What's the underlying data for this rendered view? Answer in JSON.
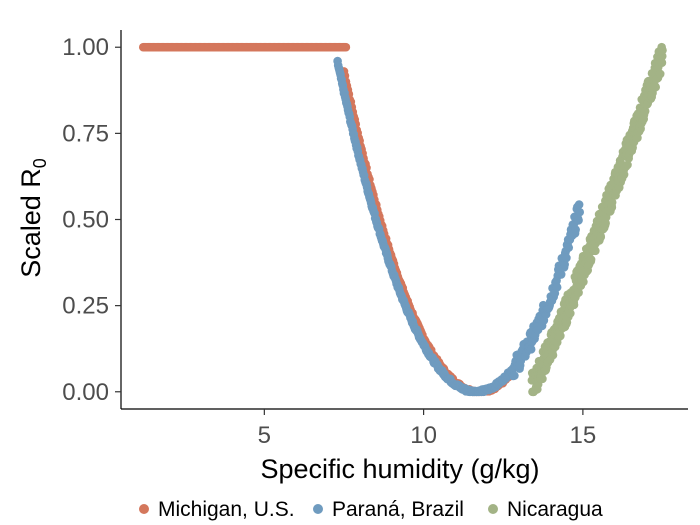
{
  "chart_data": {
    "type": "scatter",
    "xlabel": "Specific humidity (g/kg)",
    "ylabel_main": "Scaled  R",
    "ylabel_sub": "0",
    "xlim": [
      0.5,
      18.3
    ],
    "ylim": [
      -0.05,
      1.05
    ],
    "x_ticks": [
      5,
      10,
      15
    ],
    "x_tick_labels": [
      "5",
      "10",
      "15"
    ],
    "y_ticks": [
      0,
      0.25,
      0.5,
      0.75,
      1.0
    ],
    "y_tick_labels": [
      "0.00",
      "0.25",
      "0.50",
      "0.75",
      "1.00"
    ],
    "grid": false,
    "legend_position": "bottom",
    "series": [
      {
        "name": "Michigan, U.S.",
        "color": "#d4775c",
        "shape": "flat-then-parabola",
        "flat_x": [
          1.2,
          7.6
        ],
        "curve_x": [
          7.5,
          12.7
        ],
        "vertex_x": 11.75,
        "value_at_start_of_curve": 0.93,
        "noise": 0.008
      },
      {
        "name": "Paraná, Brazil",
        "color": "#6f9bbf",
        "shape": "parabola",
        "curve_x": [
          7.3,
          14.9
        ],
        "vertex_x": 11.65,
        "value_at_7_5": 0.87,
        "noise": 0.025
      },
      {
        "name": "Nicaragua",
        "color": "#a3b386",
        "shape": "rising-band",
        "curve_x": [
          13.4,
          17.5
        ],
        "value_at_13_4": 0.02,
        "value_at_17_5": 0.98,
        "noise": 0.04
      }
    ]
  }
}
